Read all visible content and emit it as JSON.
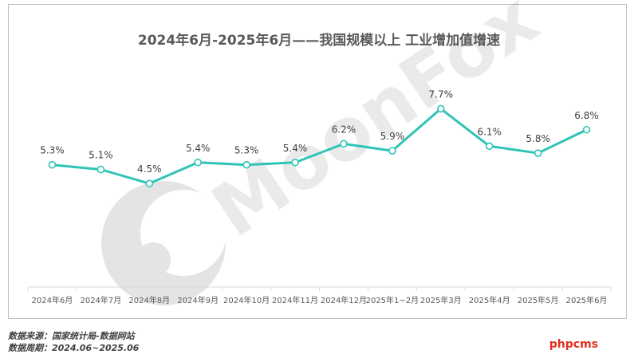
{
  "chart_data": {
    "type": "line",
    "title": "2024年6月-2025年6月——我国规模以上 工业增加值增速",
    "categories": [
      "2024年6月",
      "2024年7月",
      "2024年8月",
      "2024年9月",
      "2024年10月",
      "2024年11月",
      "2024年12月",
      "2025年1~2月",
      "2025年3月",
      "2025年4月",
      "2025年5月",
      "2025年6月"
    ],
    "values": [
      5.3,
      5.1,
      4.5,
      5.4,
      5.3,
      5.4,
      6.2,
      5.9,
      7.7,
      6.1,
      5.8,
      6.8
    ],
    "data_labels": [
      "5.3%",
      "5.1%",
      "4.5%",
      "5.4%",
      "5.3%",
      "5.4%",
      "6.2%",
      "5.9%",
      "7.7%",
      "6.1%",
      "5.8%",
      "6.8%"
    ],
    "ylim": [
      0,
      12
    ],
    "grid": false,
    "line_color": "#2ec4b6"
  },
  "watermark": {
    "text": "MoonFox",
    "icon": "moonfox-logo-icon"
  },
  "footer": {
    "source": "数据来源：国家统计局-数据网站",
    "period": "数据周期：2024.06~2025.06",
    "badge": "phpcms"
  }
}
